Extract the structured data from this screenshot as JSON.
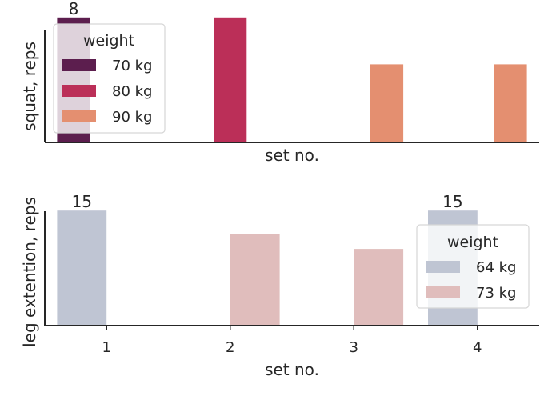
{
  "chart_data": [
    {
      "type": "bar",
      "categories": [
        "1",
        "2",
        "3",
        "4"
      ],
      "xlabel": "set no.",
      "ylabel": "squat, reps",
      "ylim": [
        0,
        8.4
      ],
      "show_x_tick_labels": false,
      "series": [
        {
          "name": "70 kg",
          "color": "#5c1e4e",
          "values": [
            8,
            null,
            null,
            null
          ]
        },
        {
          "name": "80 kg",
          "color": "#bb2f58",
          "values": [
            null,
            8,
            null,
            null
          ]
        },
        {
          "name": "90 kg",
          "color": "#e48f70",
          "values": [
            null,
            null,
            5,
            5
          ]
        }
      ],
      "data_labels": [
        {
          "category": "1",
          "series": "70 kg",
          "text": "8"
        }
      ],
      "legend": {
        "title": "weight",
        "placement": "upper-left"
      }
    },
    {
      "type": "bar",
      "categories": [
        "1",
        "2",
        "3",
        "4"
      ],
      "xlabel": "set no.",
      "ylabel": "leg extention, reps",
      "ylim": [
        0,
        15.75
      ],
      "show_x_tick_labels": true,
      "series": [
        {
          "name": "64 kg",
          "color": "#bfc5d3",
          "values": [
            15,
            null,
            null,
            15
          ]
        },
        {
          "name": "73 kg",
          "color": "#e0bdbc",
          "values": [
            null,
            12,
            10,
            null
          ]
        }
      ],
      "data_labels": [
        {
          "category": "1",
          "series": "64 kg",
          "text": "15"
        },
        {
          "category": "4",
          "series": "64 kg",
          "text": "15"
        }
      ],
      "legend": {
        "title": "weight",
        "placement": "center-right"
      }
    }
  ]
}
